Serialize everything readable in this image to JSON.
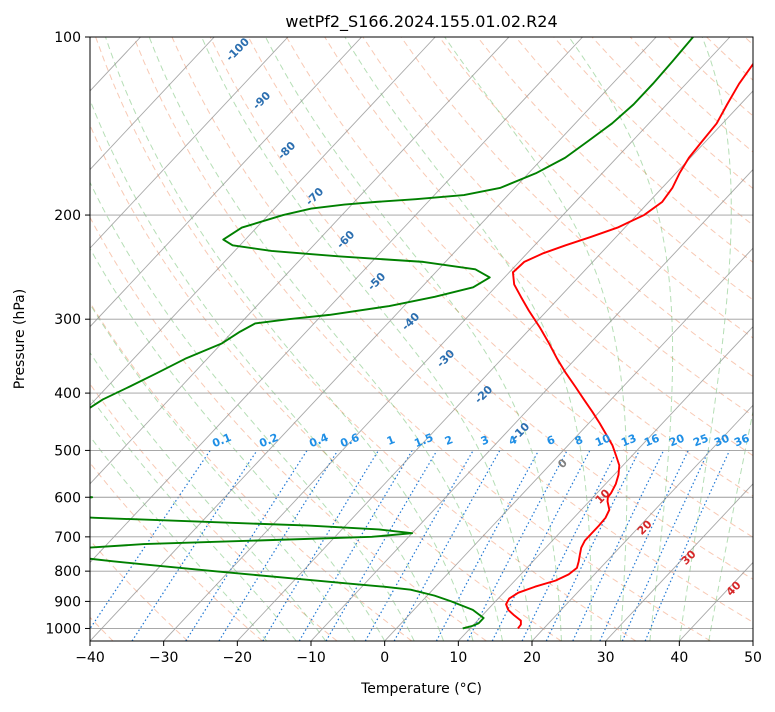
{
  "chart_data": {
    "type": "skew-t",
    "title": "wetPf2_S166.2024.155.01.02.R24",
    "xlabel": "Temperature (°C)",
    "ylabel": "Pressure (hPa)",
    "xlim": [
      -40,
      50
    ],
    "ylim": [
      1050,
      100
    ],
    "y_scale": "log",
    "x_ticks": [
      -40,
      -30,
      -20,
      -10,
      0,
      10,
      20,
      30,
      40,
      50
    ],
    "y_ticks": [
      100,
      200,
      300,
      400,
      500,
      600,
      700,
      800,
      900,
      1000
    ],
    "grid": true,
    "series": [
      {
        "color": "#ff0000",
        "pressure": [
          1000,
          985,
          970,
          950,
          930,
          910,
          890,
          870,
          850,
          830,
          810,
          790,
          770,
          750,
          730,
          710,
          690,
          670,
          650,
          630,
          610,
          600,
          590,
          570,
          550,
          530,
          510,
          490,
          470,
          450,
          430,
          410,
          390,
          370,
          350,
          330,
          310,
          290,
          275,
          262,
          250,
          240,
          232,
          225,
          218,
          210,
          200,
          190,
          180,
          170,
          160,
          150,
          140,
          130,
          120,
          110,
          100
        ],
        "temperature": [
          16.5,
          16.4,
          15.9,
          14.3,
          12.8,
          11.8,
          11.5,
          12.0,
          13.5,
          15.5,
          16.5,
          16.8,
          16.2,
          15.5,
          14.8,
          14.4,
          14.4,
          14.4,
          14.3,
          13.8,
          12.5,
          12.0,
          11.9,
          11.4,
          10.6,
          9.5,
          7.8,
          6.0,
          3.8,
          1.5,
          -1.0,
          -3.7,
          -6.5,
          -9.5,
          -12.5,
          -15.5,
          -18.8,
          -22.5,
          -25.3,
          -27.8,
          -29.5,
          -29.3,
          -27.8,
          -25.8,
          -23.5,
          -21.0,
          -19.0,
          -18.2,
          -18.6,
          -19.5,
          -20.2,
          -20.5,
          -20.8,
          -21.8,
          -22.8,
          -23.5,
          -24.0
        ]
      },
      {
        "color": "#008000",
        "pressure": [
          1000,
          990,
          980,
          960,
          930,
          900,
          880,
          860,
          850,
          840,
          830,
          820,
          810,
          800,
          790,
          780,
          770,
          760,
          750,
          745,
          740,
          735,
          730,
          720,
          710,
          700,
          690,
          680,
          670,
          660,
          650,
          645,
          640,
          635,
          630,
          625,
          620,
          612,
          605,
          600,
          595,
          590,
          585,
          580,
          570,
          550,
          530,
          510,
          490,
          470,
          450,
          430,
          410,
          390,
          370,
          350,
          330,
          315,
          305,
          300,
          295,
          285,
          275,
          265,
          255,
          247,
          240,
          235,
          230,
          225,
          220,
          210,
          200,
          195,
          192,
          190,
          188,
          185,
          180,
          170,
          160,
          150,
          140,
          130,
          120,
          110,
          100
        ],
        "dewpoint": [
          9,
          10,
          10.5,
          10.5,
          8,
          4,
          1,
          -3,
          -7,
          -12,
          -17,
          -22,
          -27,
          -32,
          -37,
          -42,
          -47,
          -51.5,
          -53,
          -54,
          -54,
          -53.5,
          -52,
          -45,
          -30,
          -15,
          -10,
          -15,
          -25,
          -40,
          -55,
          -62,
          -68,
          -72,
          -75,
          -76,
          -75,
          -68,
          -62,
          -58,
          -62,
          -71,
          -77,
          -81,
          -82,
          -80,
          -76,
          -73,
          -70,
          -70,
          -70,
          -70,
          -69,
          -67,
          -65,
          -63,
          -60,
          -59,
          -58,
          -54,
          -49,
          -42,
          -37,
          -33,
          -32,
          -35,
          -43,
          -55,
          -65,
          -71,
          -73,
          -72,
          -68,
          -65,
          -61,
          -57,
          -52,
          -46,
          -42,
          -39,
          -37,
          -36,
          -35,
          -34.5,
          -34.5,
          -34.7,
          -35
        ]
      }
    ],
    "dry_adiabat_labels": [
      "-100",
      "-90",
      "-80",
      "-70",
      "-60",
      "-50",
      "-40",
      "-30",
      "-20",
      "-10"
    ],
    "moist_adiabat_labels": [
      "0",
      "10",
      "20",
      "30",
      "40"
    ],
    "mixing_ratio_labels": [
      "0.1",
      "0.2",
      "0.4",
      "0.6",
      "1",
      "1.5",
      "2",
      "3",
      "4",
      "6",
      "8",
      "10",
      "13",
      "16",
      "20",
      "25",
      "30",
      "36"
    ]
  }
}
